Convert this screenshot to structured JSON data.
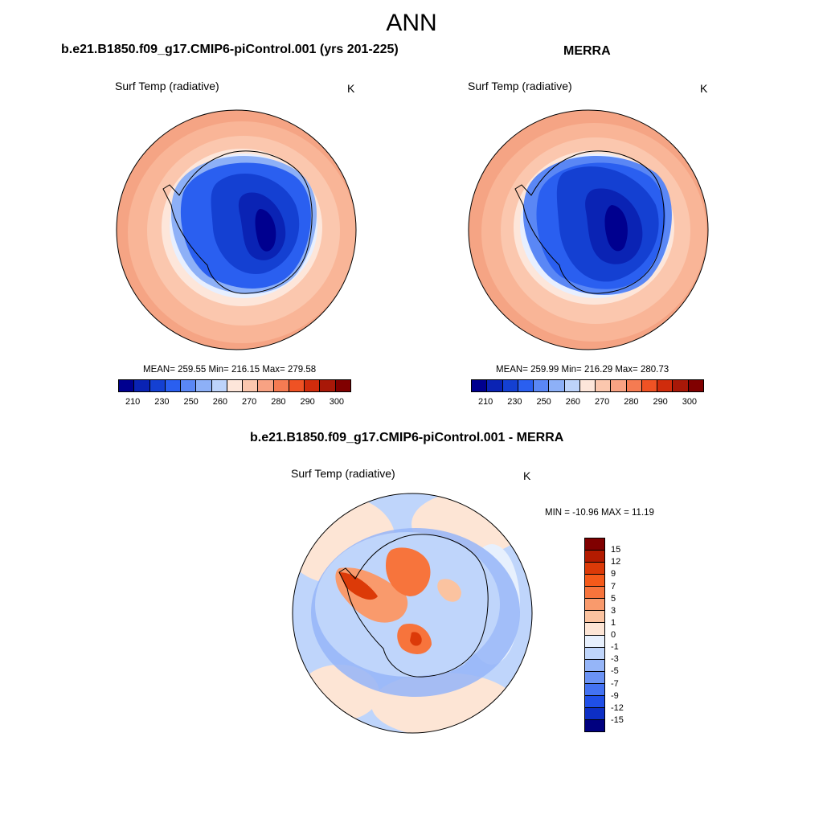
{
  "page": {
    "title": "ANN"
  },
  "panels": {
    "model": {
      "title": "b.e21.B1850.f09_g17.CMIP6-piControl.001 (yrs 201-225)",
      "variable": "Surf Temp (radiative)",
      "units": "K",
      "stats": "MEAN= 259.55  Min= 216.15  Max= 279.58"
    },
    "obs": {
      "title": "MERRA",
      "variable": "Surf Temp (radiative)",
      "units": "K",
      "stats": "MEAN= 259.99  Min= 216.29  Max= 280.73"
    },
    "diff": {
      "title": "b.e21.B1850.f09_g17.CMIP6-piControl.001 - MERRA",
      "variable": "Surf Temp (radiative)",
      "units": "K",
      "stats": "MIN = -10.96 MAX =  11.19"
    }
  },
  "colorbars": {
    "abs": {
      "colors": [
        "#00008f",
        "#0a23b4",
        "#1440d2",
        "#2a5ff0",
        "#5a87f5",
        "#8db0f7",
        "#bdd3fa",
        "#fde6da",
        "#fbc7ae",
        "#f8a283",
        "#f57b52",
        "#ef5224",
        "#d02c0c",
        "#a81808",
        "#800000"
      ],
      "ticks": [
        "210",
        "230",
        "250",
        "260",
        "270",
        "280",
        "290",
        "300"
      ]
    },
    "diff": {
      "colors": [
        "#800000",
        "#b31b00",
        "#dc3a08",
        "#f55a1a",
        "#f7743c",
        "#f99a6c",
        "#fbc3a0",
        "#fde5d5",
        "#e7f0fd",
        "#bfd5fb",
        "#95b5f8",
        "#6b93f5",
        "#4372f2",
        "#1f4fe8",
        "#0d2fc5",
        "#00007f"
      ],
      "ticks": [
        "15",
        "12",
        "9",
        "7",
        "5",
        "3",
        "1",
        "0",
        "-1",
        "-3",
        "-5",
        "-7",
        "-9",
        "-12",
        "-15"
      ]
    }
  }
}
